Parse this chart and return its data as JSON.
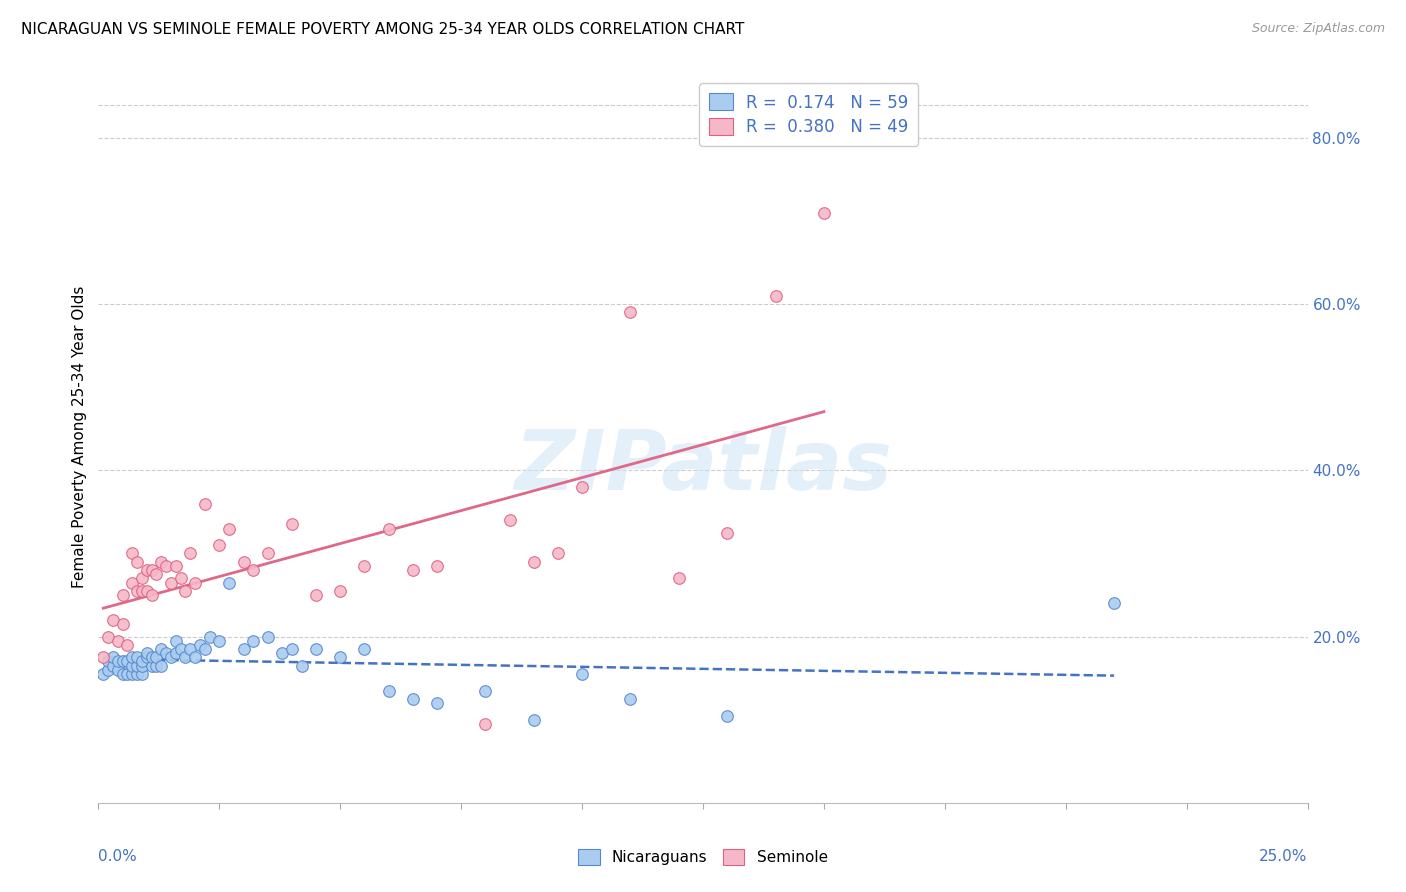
{
  "title": "NICARAGUAN VS SEMINOLE FEMALE POVERTY AMONG 25-34 YEAR OLDS CORRELATION CHART",
  "source": "Source: ZipAtlas.com",
  "ylabel": "Female Poverty Among 25-34 Year Olds",
  "right_yticks": [
    "20.0%",
    "40.0%",
    "60.0%",
    "80.0%"
  ],
  "right_ytick_vals": [
    0.2,
    0.4,
    0.6,
    0.8
  ],
  "xlim": [
    0.0,
    0.25
  ],
  "ylim": [
    0.0,
    0.88
  ],
  "color_nicaraguan_fill": "#aaccf0",
  "color_nicaraguan_edge": "#5588cc",
  "color_seminole_fill": "#f5b8c8",
  "color_seminole_edge": "#e06080",
  "color_blue": "#4472c4",
  "color_pink": "#e06888",
  "watermark": "ZIPatlas",
  "nicaraguan_x": [
    0.001,
    0.002,
    0.002,
    0.003,
    0.003,
    0.004,
    0.004,
    0.005,
    0.005,
    0.006,
    0.006,
    0.007,
    0.007,
    0.007,
    0.008,
    0.008,
    0.008,
    0.009,
    0.009,
    0.009,
    0.01,
    0.01,
    0.011,
    0.011,
    0.012,
    0.012,
    0.013,
    0.013,
    0.014,
    0.015,
    0.016,
    0.016,
    0.017,
    0.018,
    0.019,
    0.02,
    0.021,
    0.022,
    0.023,
    0.025,
    0.027,
    0.03,
    0.032,
    0.035,
    0.038,
    0.04,
    0.042,
    0.045,
    0.05,
    0.055,
    0.06,
    0.065,
    0.07,
    0.08,
    0.09,
    0.1,
    0.11,
    0.13,
    0.21
  ],
  "nicaraguan_y": [
    0.155,
    0.16,
    0.17,
    0.165,
    0.175,
    0.16,
    0.17,
    0.155,
    0.17,
    0.155,
    0.17,
    0.155,
    0.165,
    0.175,
    0.155,
    0.165,
    0.175,
    0.155,
    0.165,
    0.17,
    0.175,
    0.18,
    0.165,
    0.175,
    0.165,
    0.175,
    0.165,
    0.185,
    0.18,
    0.175,
    0.18,
    0.195,
    0.185,
    0.175,
    0.185,
    0.175,
    0.19,
    0.185,
    0.2,
    0.195,
    0.265,
    0.185,
    0.195,
    0.2,
    0.18,
    0.185,
    0.165,
    0.185,
    0.175,
    0.185,
    0.135,
    0.125,
    0.12,
    0.135,
    0.1,
    0.155,
    0.125,
    0.105,
    0.24
  ],
  "seminole_x": [
    0.001,
    0.002,
    0.003,
    0.004,
    0.005,
    0.005,
    0.006,
    0.007,
    0.007,
    0.008,
    0.008,
    0.009,
    0.009,
    0.01,
    0.01,
    0.011,
    0.011,
    0.012,
    0.013,
    0.014,
    0.015,
    0.016,
    0.017,
    0.018,
    0.019,
    0.02,
    0.022,
    0.025,
    0.027,
    0.03,
    0.032,
    0.035,
    0.04,
    0.045,
    0.05,
    0.055,
    0.06,
    0.065,
    0.07,
    0.08,
    0.085,
    0.09,
    0.095,
    0.1,
    0.11,
    0.12,
    0.13,
    0.14,
    0.15
  ],
  "seminole_y": [
    0.175,
    0.2,
    0.22,
    0.195,
    0.215,
    0.25,
    0.19,
    0.265,
    0.3,
    0.255,
    0.29,
    0.255,
    0.27,
    0.255,
    0.28,
    0.25,
    0.28,
    0.275,
    0.29,
    0.285,
    0.265,
    0.285,
    0.27,
    0.255,
    0.3,
    0.265,
    0.36,
    0.31,
    0.33,
    0.29,
    0.28,
    0.3,
    0.335,
    0.25,
    0.255,
    0.285,
    0.33,
    0.28,
    0.285,
    0.095,
    0.34,
    0.29,
    0.3,
    0.38,
    0.59,
    0.27,
    0.325,
    0.61,
    0.71
  ]
}
